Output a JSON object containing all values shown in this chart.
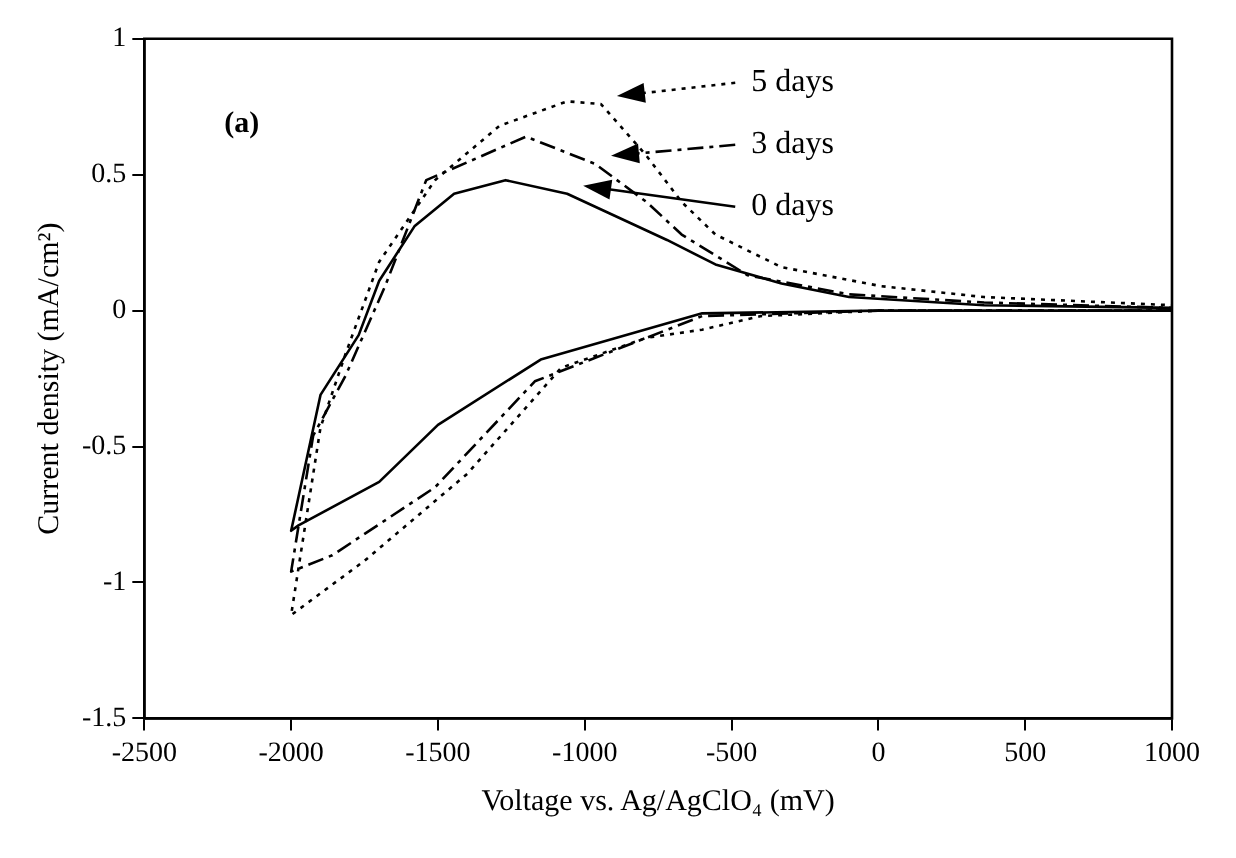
{
  "chart_data": {
    "type": "line",
    "xlabel": "Voltage vs. Ag/AgClO₄ (mV)",
    "ylabel": "Current density (mA/cm²)",
    "annotations": [
      "(a)"
    ],
    "xlim": [
      -2500,
      1000
    ],
    "xticks": [
      -2500,
      -2000,
      -1500,
      -1000,
      -500,
      0,
      500,
      1000
    ],
    "ylim": [
      -1.5,
      1
    ],
    "yticks": [
      -1.5,
      -1,
      -0.5,
      0,
      0.5,
      1
    ],
    "grid": false,
    "legend": "top right",
    "marker": "none",
    "series": [
      {
        "name": "5 days",
        "color": "#000000",
        "line_style": "dotted",
        "x": [
          1000,
          0,
          -400,
          -600,
          -790,
          -1080,
          -1400,
          -1750,
          -2000,
          -1900,
          -1815,
          -1700,
          -1510,
          -1290,
          -1060,
          -945,
          -790,
          -670,
          -555,
          -330,
          10,
          360,
          1000
        ],
        "values": [
          0,
          0,
          -0.02,
          -0.07,
          -0.1,
          -0.21,
          -0.6,
          -0.92,
          -1.12,
          -0.43,
          -0.16,
          0.18,
          0.48,
          0.68,
          0.77,
          0.76,
          0.57,
          0.4,
          0.28,
          0.16,
          0.09,
          0.05,
          0.02
        ]
      },
      {
        "name": "3 days",
        "color": "#000000",
        "line_style": "dashed",
        "x": [
          1000,
          0,
          -600,
          -1170,
          -1510,
          -1860,
          -2000,
          -1925,
          -1815,
          -1680,
          -1540,
          -1200,
          -965,
          -790,
          -670,
          -445,
          -100,
          360,
          1000
        ],
        "values": [
          0,
          0,
          -0.02,
          -0.26,
          -0.65,
          -0.9,
          -0.96,
          -0.46,
          -0.24,
          0.09,
          0.48,
          0.64,
          0.54,
          0.4,
          0.28,
          0.13,
          0.06,
          0.03,
          0.01
        ]
      },
      {
        "name": "0 days",
        "color": "#000000",
        "line_style": "solid",
        "x": [
          1000,
          0,
          -600,
          -1150,
          -1500,
          -1700,
          -1975,
          -2000,
          -1900,
          -1770,
          -1700,
          -1580,
          -1445,
          -1270,
          -1060,
          -900,
          -720,
          -555,
          -330,
          -100,
          360,
          1000
        ],
        "values": [
          0,
          0,
          -0.01,
          -0.18,
          -0.42,
          -0.63,
          -0.79,
          -0.81,
          -0.31,
          -0.09,
          0.11,
          0.31,
          0.43,
          0.48,
          0.43,
          0.35,
          0.26,
          0.17,
          0.1,
          0.05,
          0.02,
          0.01
        ]
      }
    ]
  }
}
